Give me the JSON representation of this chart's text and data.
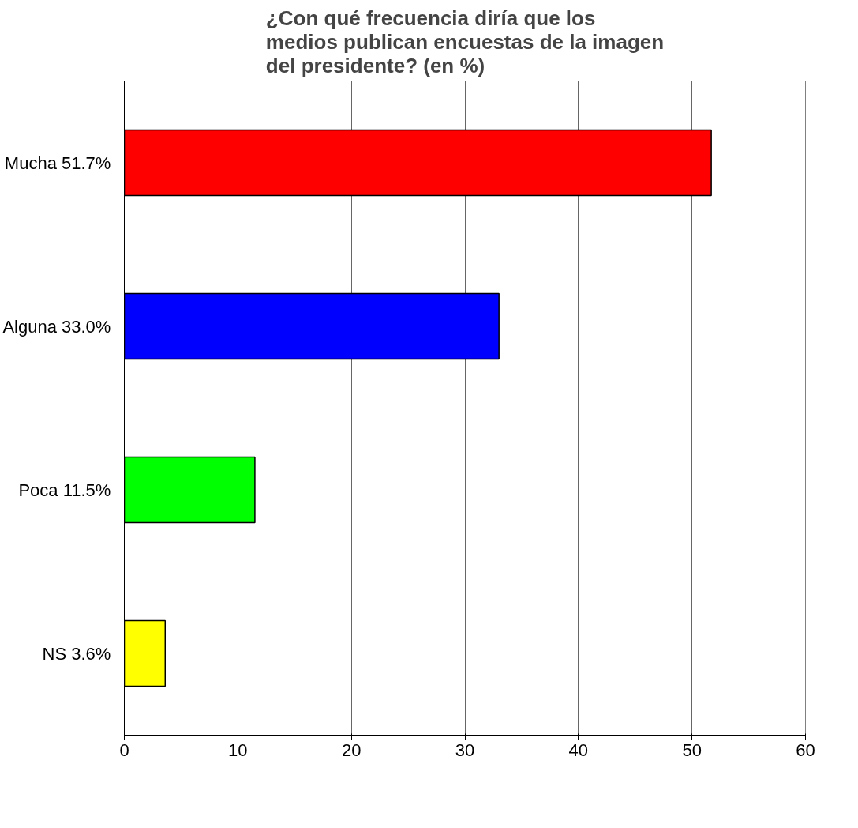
{
  "chart_data": {
    "type": "bar",
    "orientation": "horizontal",
    "title": "¿Con qué frecuencia diría que los medios publican encuestas de la imagen del presidente? (en %)",
    "categories": [
      "Mucha  51.7%",
      "Alguna  33.0%",
      "Poca  11.5%",
      "NS  3.6%"
    ],
    "values": [
      51.7,
      33.0,
      11.5,
      3.6
    ],
    "colors": [
      "#ff0000",
      "#0000ff",
      "#00ff00",
      "#ffff00"
    ],
    "xlim": [
      0,
      60
    ],
    "xticks": [
      0,
      10,
      20,
      30,
      40,
      50,
      60
    ],
    "grid": "x"
  }
}
